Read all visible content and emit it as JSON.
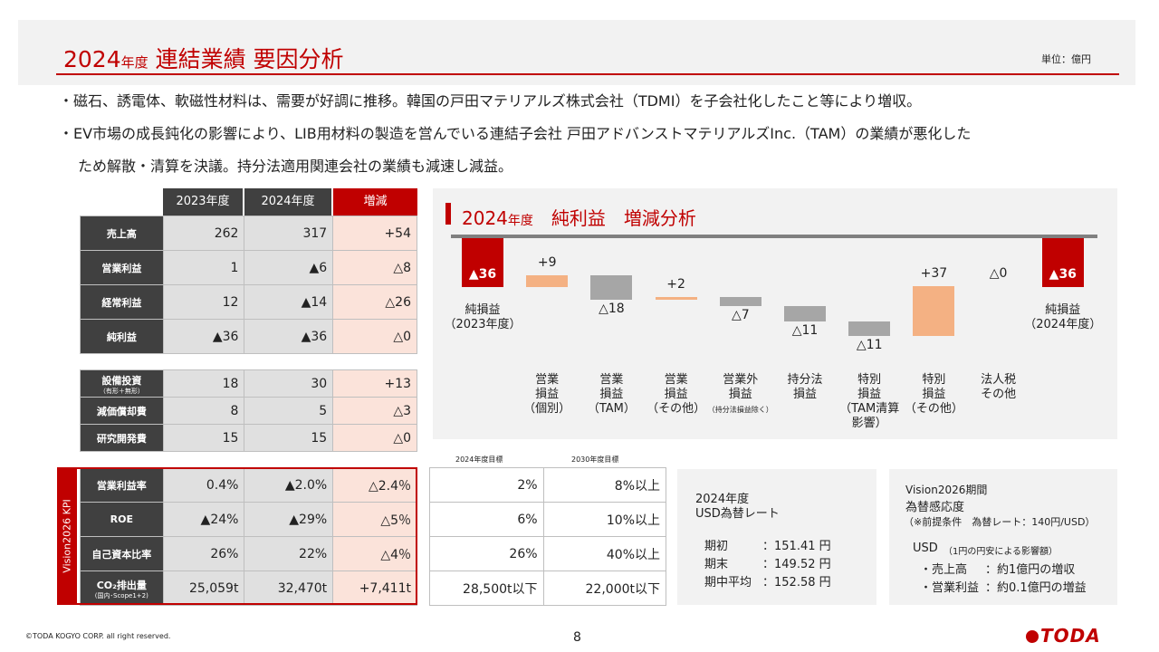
{
  "header": {
    "title_year": "2024",
    "title_year_suffix": "年度",
    "title_main": " 連結業績 要因分析",
    "unit": "単位：億円"
  },
  "bullets": [
    "・磁石、誘電体、軟磁性材料は、需要が好調に推移。韓国の戸田マテリアルズ株式会社（TDMI）を子会社化したこと等により増収。",
    "・EV市場の成長鈍化の影響により、LIB用材料の製造を営んでいる連結子会社 戸田アドバンストマテリアルズInc.（TAM）の業績が悪化した",
    "ため解散・清算を決議。持分法適用関連会社の業績も減速し減益。"
  ],
  "table_headers": {
    "y2023": "2023年度",
    "y2024": "2024年度",
    "diff": "増減"
  },
  "table_main": [
    {
      "label": "売上高",
      "v2023": "262",
      "v2024": "317",
      "diff": "+54"
    },
    {
      "label": "営業利益",
      "v2023": "1",
      "v2024": "▲6",
      "diff": "△8"
    },
    {
      "label": "経常利益",
      "v2023": "12",
      "v2024": "▲14",
      "diff": "△26"
    },
    {
      "label": "純利益",
      "v2023": "▲36",
      "v2024": "▲36",
      "diff": "△0"
    }
  ],
  "table_sub": [
    {
      "label": "設備投資",
      "sub": "（有形＋無形）",
      "v2023": "18",
      "v2024": "30",
      "diff": "+13"
    },
    {
      "label": "減価償却費",
      "sub": "",
      "v2023": "8",
      "v2024": "5",
      "diff": "△3"
    },
    {
      "label": "研究開発費",
      "sub": "",
      "v2023": "15",
      "v2024": "15",
      "diff": "△0"
    }
  ],
  "kpi": {
    "side_label": "Vision2026 KPI",
    "target_2024_header": "2024年度目標",
    "target_2030_header": "2030年度目標",
    "rows": [
      {
        "label": "営業利益率",
        "sub": "",
        "v2023": "0.4%",
        "v2024": "▲2.0%",
        "diff": "△2.4％",
        "t2024": "2%",
        "t2030": "8%以上"
      },
      {
        "label": "ROE",
        "sub": "",
        "v2023": "▲24%",
        "v2024": "▲29%",
        "diff": "△5％",
        "t2024": "6%",
        "t2030": "10%以上"
      },
      {
        "label": "自己資本比率",
        "sub": "",
        "v2023": "26%",
        "v2024": "22%",
        "diff": "△4％",
        "t2024": "26%",
        "t2030": "40%以上"
      },
      {
        "label": "CO₂排出量",
        "sub": "(国内･Scope1+2)",
        "v2023": "25,059t",
        "v2024": "32,470t",
        "diff": "+7,411t",
        "t2024": "28,500t以下",
        "t2030": "22,000t以下"
      }
    ]
  },
  "chart_title": {
    "year": "2024",
    "suffix": "年度",
    "main": "　純利益　増減分析"
  },
  "chart_data": {
    "type": "bar",
    "subtype": "waterfall",
    "start": {
      "value": -36,
      "label": "▲36",
      "name": "純損益",
      "name2": "（2023年度）"
    },
    "end": {
      "value": -36,
      "label": "▲36",
      "name": "純損益",
      "name2": "（2024年度）"
    },
    "steps": [
      {
        "label": "+9",
        "value": 9,
        "category": [
          "営業",
          "損益",
          "（個別）"
        ]
      },
      {
        "label": "△18",
        "value": -18,
        "category": [
          "営業",
          "損益",
          "（TAM）"
        ]
      },
      {
        "label": "+2",
        "value": 2,
        "category": [
          "営業",
          "損益",
          "（その他）"
        ]
      },
      {
        "label": "△7",
        "value": -7,
        "category": [
          "営業外",
          "損益"
        ],
        "category_sub": "（持分法損益除く）"
      },
      {
        "label": "△11",
        "value": -11,
        "category": [
          "持分法",
          "損益"
        ]
      },
      {
        "label": "△11",
        "value": -11,
        "category": [
          "特別",
          "損益",
          "（TAM清算",
          "影響）"
        ]
      },
      {
        "label": "+37",
        "value": 37,
        "category": [
          "特別",
          "損益",
          "（その他）"
        ]
      },
      {
        "label": "△0",
        "value": 0,
        "category": [
          "法人税",
          "その他"
        ]
      }
    ],
    "colors": {
      "total": "#c00000",
      "increase": "#f4b183",
      "decrease": "#a6a6a6"
    }
  },
  "fx_box": {
    "title1": "2024年度",
    "title2": "USD為替レート",
    "rows": [
      {
        "label": "期初",
        "value": "：151.41 円"
      },
      {
        "label": "期末",
        "value": "：149.52 円"
      },
      {
        "label": "期中平均",
        "value": "：152.58 円"
      }
    ]
  },
  "sens_box": {
    "title1": "Vision2026期間",
    "title2": "為替感応度",
    "cond": "（※前提条件　為替レート：140円/USD）",
    "usd": "USD",
    "usd_note": "（1円の円安による影響額）",
    "rows": [
      {
        "label": "・売上高",
        "value": "：約1億円の増収"
      },
      {
        "label": "・営業利益",
        "value": "：約0.1億円の増益"
      }
    ]
  },
  "footer": {
    "copyright": "©TODA KOGYO CORP. all right reserved.",
    "page": "8",
    "logo": "TODA"
  }
}
